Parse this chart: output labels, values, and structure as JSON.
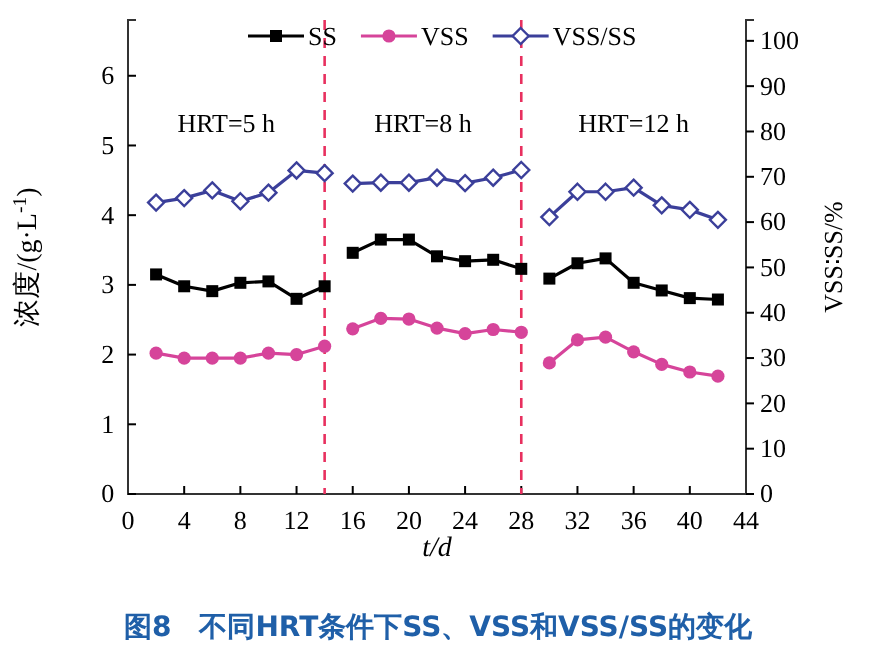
{
  "chart_data": {
    "type": "line",
    "title": "图8　不同HRT条件下SS、VSS和VSS/SS的变化",
    "xlabel": "t/d",
    "ylabel": "浓度/(g·L$^{-1}$)",
    "y2label": "VSS∶SS/%",
    "x": [
      2,
      4,
      6,
      8,
      10,
      12,
      14,
      15,
      16,
      18,
      20,
      22,
      24,
      26,
      28,
      29,
      30,
      32,
      34,
      36,
      38,
      40,
      42
    ],
    "xlim": [
      0,
      44
    ],
    "xticks": [
      0,
      4,
      8,
      12,
      16,
      20,
      24,
      28,
      32,
      36,
      40,
      44
    ],
    "ylim": [
      0,
      6.8
    ],
    "yticks": [
      0,
      1,
      2,
      3,
      4,
      5,
      6
    ],
    "y2lim": [
      0,
      104.6
    ],
    "y2ticks": [
      0,
      10,
      20,
      30,
      40,
      50,
      60,
      70,
      80,
      90,
      100
    ],
    "legend": "top",
    "grid": false,
    "series": [
      {
        "name": "SS",
        "color": "#000000",
        "marker": "square",
        "values": [
          3.15,
          2.98,
          2.91,
          3.03,
          3.05,
          2.8,
          2.98,
          null,
          3.46,
          3.65,
          3.65,
          3.41,
          3.34,
          3.36,
          3.23,
          null,
          3.09,
          3.31,
          3.38,
          3.03,
          2.92,
          2.81,
          2.79
        ]
      },
      {
        "name": "VSS",
        "color": "#d6449a",
        "marker": "circle",
        "values": [
          2.02,
          1.95,
          1.95,
          1.95,
          2.02,
          2.0,
          2.12,
          null,
          2.37,
          2.52,
          2.51,
          2.38,
          2.3,
          2.36,
          2.32,
          null,
          1.88,
          2.21,
          2.25,
          2.04,
          1.86,
          1.75,
          1.69
        ]
      },
      {
        "name": "VSS/SS",
        "color": "#3b3f9a",
        "marker": "diamond",
        "axis": "y2",
        "values": [
          64.3,
          65.3,
          67.0,
          64.6,
          66.5,
          71.4,
          70.8,
          null,
          68.5,
          68.7,
          68.7,
          69.8,
          68.6,
          69.8,
          71.5,
          null,
          61.1,
          66.7,
          66.7,
          67.6,
          63.7,
          62.7,
          60.5
        ]
      }
    ],
    "ref_lines": [
      {
        "axis": "x",
        "value": 14,
        "color": "#e8305f",
        "line_style": "dashed"
      },
      {
        "axis": "x",
        "value": 28,
        "color": "#e8305f",
        "line_style": "dashed"
      }
    ],
    "annotations": [
      "HRT=5 h",
      "HRT=8 h",
      "HRT=12 h"
    ]
  }
}
